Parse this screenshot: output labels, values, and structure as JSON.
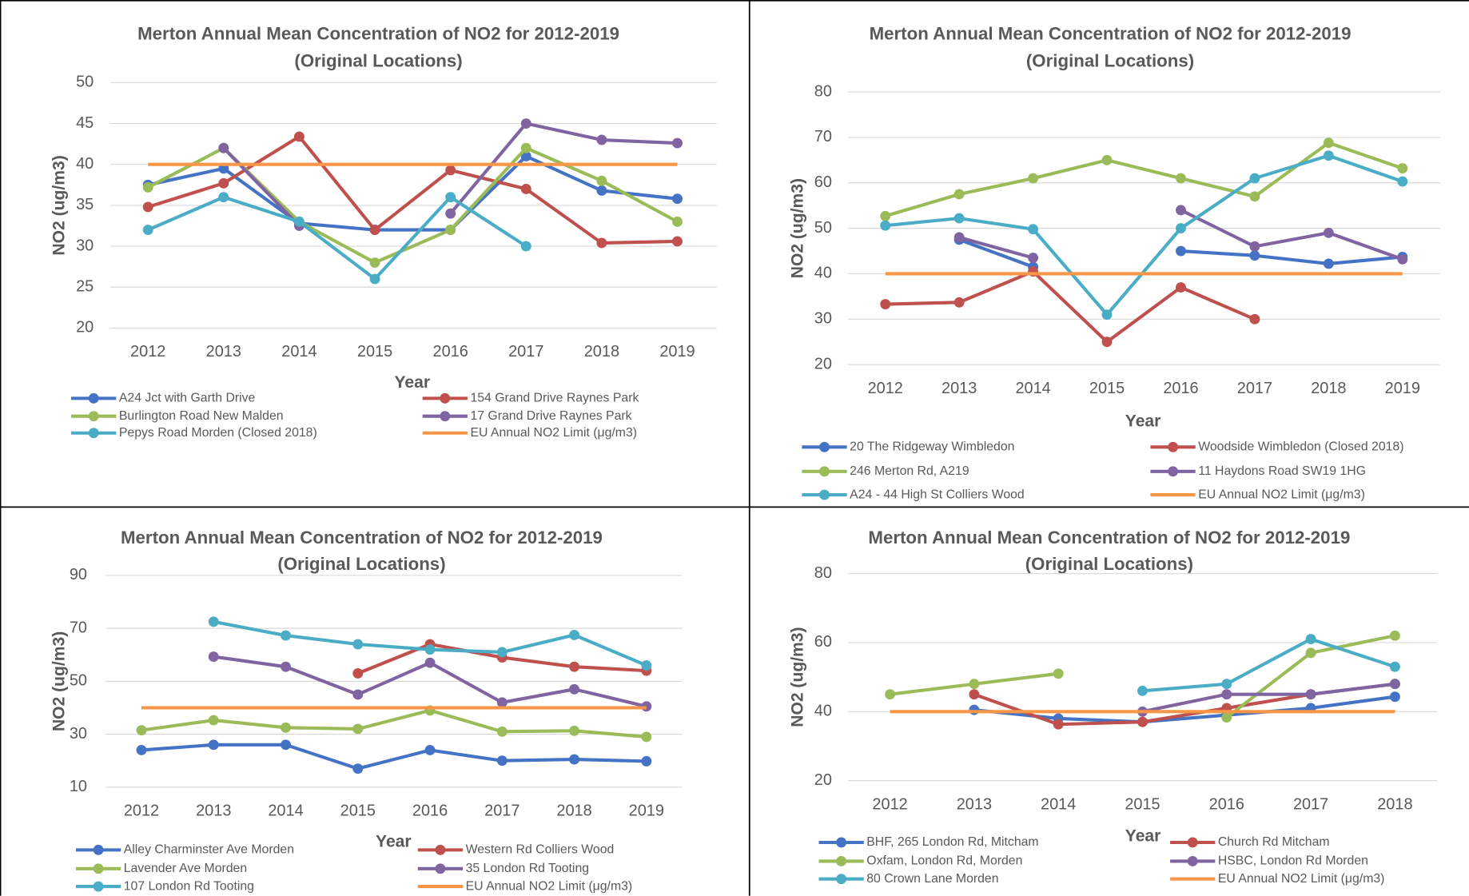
{
  "chart_data": [
    {
      "type": "line",
      "title": "Merton Annual Mean Concentration of NO2 for 2012-2019",
      "subtitle": "(Original Locations)",
      "x_label": "Year",
      "y_label": "NO2 (ug/m3)",
      "categories": [
        "2012",
        "2013",
        "2014",
        "2015",
        "2016",
        "2017",
        "2018",
        "2019"
      ],
      "ylim": [
        20,
        50
      ],
      "yticks": [
        20,
        25,
        30,
        35,
        40,
        45,
        50
      ],
      "grid": true,
      "series": [
        {
          "name": "A24 Jct with Garth Drive",
          "color": "#4472c4",
          "values": [
            37.5,
            39.5,
            32.8,
            32,
            32,
            41,
            36.8,
            35.8
          ]
        },
        {
          "name": "154 Grand Drive Raynes Park",
          "color": "#c0504d",
          "values": [
            34.8,
            37.7,
            43.4,
            32,
            39.3,
            37,
            30.4,
            30.6
          ]
        },
        {
          "name": "Burlington Road New Malden",
          "color": "#9bbb59",
          "values": [
            37.2,
            42,
            33,
            28,
            32,
            42,
            38,
            33
          ]
        },
        {
          "name": "17 Grand Drive Raynes Park",
          "color": "#8064a2",
          "values": [
            null,
            42,
            32.5,
            null,
            34,
            45,
            43,
            42.6
          ]
        },
        {
          "name": "Pepys Road Morden (Closed 2018)",
          "color": "#4bacc6",
          "values": [
            32,
            36,
            33,
            26,
            36,
            30,
            null,
            null
          ]
        },
        {
          "name": "EU Annual NO2 Limit (μg/m3)",
          "color": "#f79646",
          "marker": false,
          "values": [
            40,
            40,
            40,
            40,
            40,
            40,
            40,
            40
          ]
        }
      ]
    },
    {
      "type": "line",
      "title": "Merton Annual Mean Concentration of NO2 for 2012-2019",
      "subtitle": "(Original Locations)",
      "x_label": "Year",
      "y_label": "NO2 (ug/m3)",
      "categories": [
        "2012",
        "2013",
        "2014",
        "2015",
        "2016",
        "2017",
        "2018",
        "2019"
      ],
      "ylim": [
        20,
        80
      ],
      "yticks": [
        20,
        30,
        40,
        50,
        60,
        70,
        80
      ],
      "grid": true,
      "series": [
        {
          "name": "20 The Ridgeway Wimbledon",
          "color": "#4472c4",
          "values": [
            null,
            47.5,
            41.5,
            null,
            45,
            44,
            42.2,
            43.7
          ]
        },
        {
          "name": "Woodside Wimbledon (Closed 2018)",
          "color": "#c0504d",
          "values": [
            33.3,
            33.7,
            40.5,
            25,
            37,
            30,
            null,
            null
          ]
        },
        {
          "name": "246 Merton Rd, A219",
          "color": "#9bbb59",
          "values": [
            52.7,
            57.5,
            61,
            65,
            61,
            57,
            68.8,
            63.2
          ]
        },
        {
          "name": "11 Haydons Road SW19 1HG",
          "color": "#8064a2",
          "values": [
            null,
            48,
            43.5,
            null,
            54,
            46,
            49,
            43.2
          ]
        },
        {
          "name": "A24 - 44 High St Colliers Wood",
          "color": "#4bacc6",
          "values": [
            50.6,
            52.2,
            49.8,
            31,
            50,
            61,
            66,
            60.3
          ]
        },
        {
          "name": "EU Annual NO2 Limit (μg/m3)",
          "color": "#f79646",
          "marker": false,
          "values": [
            40,
            40,
            40,
            40,
            40,
            40,
            40,
            40
          ]
        }
      ]
    },
    {
      "type": "line",
      "title": "Merton Annual Mean Concentration of NO2 for 2012-2019",
      "subtitle": "(Original Locations)",
      "x_label": "Year",
      "y_label": "NO2 (ug/m3)",
      "categories": [
        "2012",
        "2013",
        "2014",
        "2015",
        "2016",
        "2017",
        "2018",
        "2019"
      ],
      "ylim": [
        10,
        90
      ],
      "yticks": [
        10,
        30,
        50,
        70,
        90
      ],
      "grid": true,
      "series": [
        {
          "name": "Alley Charminster Ave Morden",
          "color": "#4472c4",
          "values": [
            24,
            26,
            26,
            17,
            24,
            20,
            20.5,
            19.8
          ]
        },
        {
          "name": "Western Rd Colliers Wood",
          "color": "#c0504d",
          "values": [
            null,
            null,
            null,
            53,
            64,
            59,
            55.5,
            54
          ]
        },
        {
          "name": "Lavender Ave Morden",
          "color": "#9bbb59",
          "values": [
            31.5,
            35.3,
            32.5,
            32,
            39,
            31,
            31.3,
            29
          ]
        },
        {
          "name": "35 London Rd Tooting",
          "color": "#8064a2",
          "values": [
            null,
            59.3,
            55.5,
            45,
            57,
            42,
            47,
            40.5
          ]
        },
        {
          "name": "107 London Rd Tooting",
          "color": "#4bacc6",
          "values": [
            null,
            72.5,
            67.3,
            64,
            62,
            61,
            67.5,
            56
          ]
        },
        {
          "name": "EU Annual NO2 Limit (μg/m3)",
          "color": "#f79646",
          "marker": false,
          "values": [
            40,
            40,
            40,
            40,
            40,
            40,
            40,
            40
          ]
        }
      ]
    },
    {
      "type": "line",
      "title": "Merton Annual Mean Concentration of NO2 for 2012-2019",
      "subtitle": "(Original Locations)",
      "x_label": "Year",
      "y_label": "NO2 (ug/m3)",
      "categories": [
        "2012",
        "2013",
        "2014",
        "2015",
        "2016",
        "2017",
        "2018"
      ],
      "ylim": [
        20,
        80
      ],
      "yticks": [
        20,
        40,
        60,
        80
      ],
      "grid": true,
      "series": [
        {
          "name": "BHF, 265 London Rd, Mitcham",
          "color": "#4472c4",
          "values": [
            null,
            40.5,
            38,
            37,
            39,
            41,
            44.3
          ]
        },
        {
          "name": "Church Rd Mitcham",
          "color": "#c0504d",
          "values": [
            null,
            45,
            36.3,
            37,
            41,
            45,
            48
          ]
        },
        {
          "name": "Oxfam, London Rd, Morden",
          "color": "#9bbb59",
          "values": [
            45,
            48,
            51,
            null,
            38.3,
            57,
            62
          ]
        },
        {
          "name": "HSBC, London Rd Morden",
          "color": "#8064a2",
          "values": [
            null,
            null,
            null,
            40,
            45,
            45,
            48
          ]
        },
        {
          "name": "80 Crown Lane Morden",
          "color": "#4bacc6",
          "values": [
            null,
            null,
            null,
            46,
            48,
            61,
            53
          ]
        },
        {
          "name": "EU Annual NO2 Limit (μg/m3)",
          "color": "#f79646",
          "marker": false,
          "values": [
            40,
            40,
            40,
            40,
            40,
            40,
            40
          ]
        }
      ]
    }
  ]
}
